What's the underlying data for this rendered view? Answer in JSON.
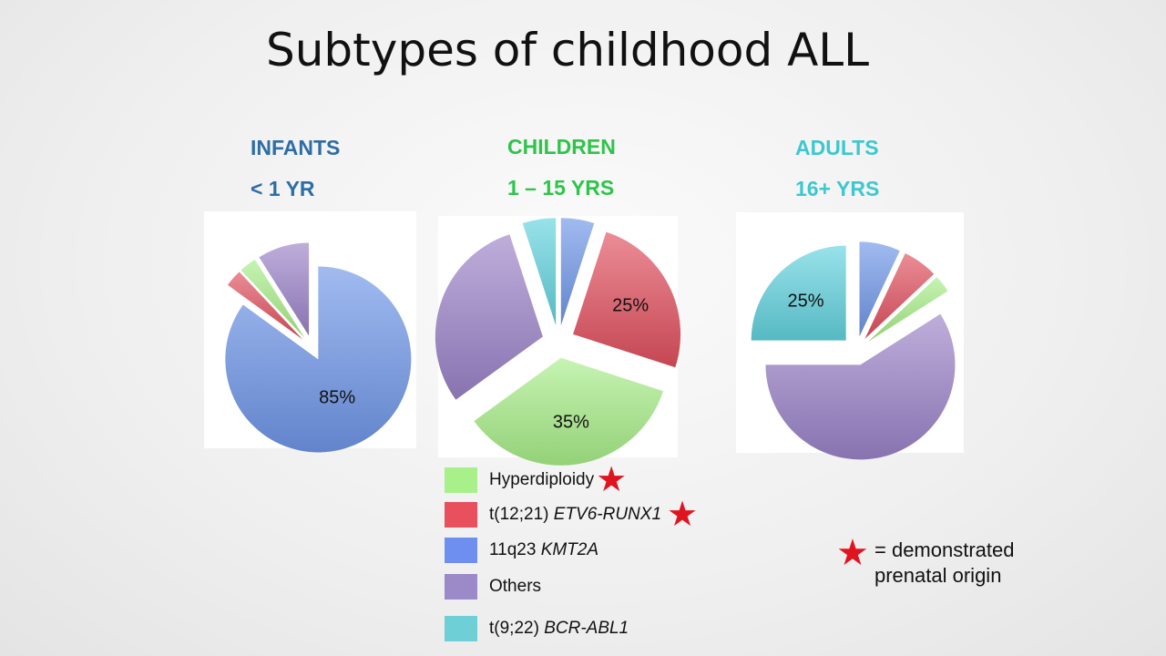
{
  "title": "Subtypes of childhood ALL",
  "groups": [
    {
      "label": "INFANTS",
      "sublabel": "< 1 YR",
      "color": "#2e6da4"
    },
    {
      "label": "CHILDREN",
      "sublabel": "1 – 15 YRS",
      "color": "#2ec44a"
    },
    {
      "label": "ADULTS",
      "sublabel": "16+ YRS",
      "color": "#3cc8d0"
    }
  ],
  "chart_data": [
    {
      "type": "pie",
      "title": "INFANTS < 1 YR",
      "slices": [
        {
          "category": "11q23 KMT2A",
          "value": 85,
          "label": "85%"
        },
        {
          "category": "t(12;21) ETV6-RUNX1",
          "value": 3
        },
        {
          "category": "Hyperdiploidy",
          "value": 3
        },
        {
          "category": "Others",
          "value": 9
        }
      ]
    },
    {
      "type": "pie",
      "title": "CHILDREN 1 – 15 YRS",
      "slices": [
        {
          "category": "11q23 KMT2A",
          "value": 5
        },
        {
          "category": "t(12;21) ETV6-RUNX1",
          "value": 25,
          "label": "25%"
        },
        {
          "category": "Hyperdiploidy",
          "value": 35,
          "label": "35%"
        },
        {
          "category": "Others",
          "value": 30
        },
        {
          "category": "t(9;22) BCR-ABL1",
          "value": 5
        }
      ]
    },
    {
      "type": "pie",
      "title": "ADULTS 16+ YRS",
      "slices": [
        {
          "category": "11q23 KMT2A",
          "value": 7
        },
        {
          "category": "t(12;21) ETV6-RUNX1",
          "value": 6
        },
        {
          "category": "Hyperdiploidy",
          "value": 3
        },
        {
          "category": "Others",
          "value": 59
        },
        {
          "category": "t(9;22) BCR-ABL1",
          "value": 25,
          "label": "25%"
        }
      ]
    }
  ],
  "category_colors": {
    "Hyperdiploidy": "#a8ee88",
    "t(12;21) ETV6-RUNX1": "#e0505e",
    "11q23 KMT2A": "#6f96e8",
    "Others": "#9b83c8",
    "t(9;22) BCR-ABL1": "#62d2de"
  },
  "legend": [
    {
      "text": "Hyperdiploidy",
      "italic": "",
      "color": "#a8f08a",
      "star": true
    },
    {
      "text": "t(12;21) ",
      "italic": "ETV6-RUNX1",
      "color": "#e8505e",
      "star": true
    },
    {
      "text": "11q23 ",
      "italic": "KMT2A",
      "color": "#6f8ff0",
      "star": false
    },
    {
      "text": "Others",
      "italic": "",
      "color": "#9b89c8",
      "star": false
    },
    {
      "text": "t(9;22) ",
      "italic": "BCR-ABL1",
      "color": "#6fcfd6",
      "star": false
    }
  ],
  "star_glyph": "★",
  "note": {
    "line1": "= demonstrated",
    "line2": "prenatal origin"
  },
  "star_color": "#e0141e"
}
